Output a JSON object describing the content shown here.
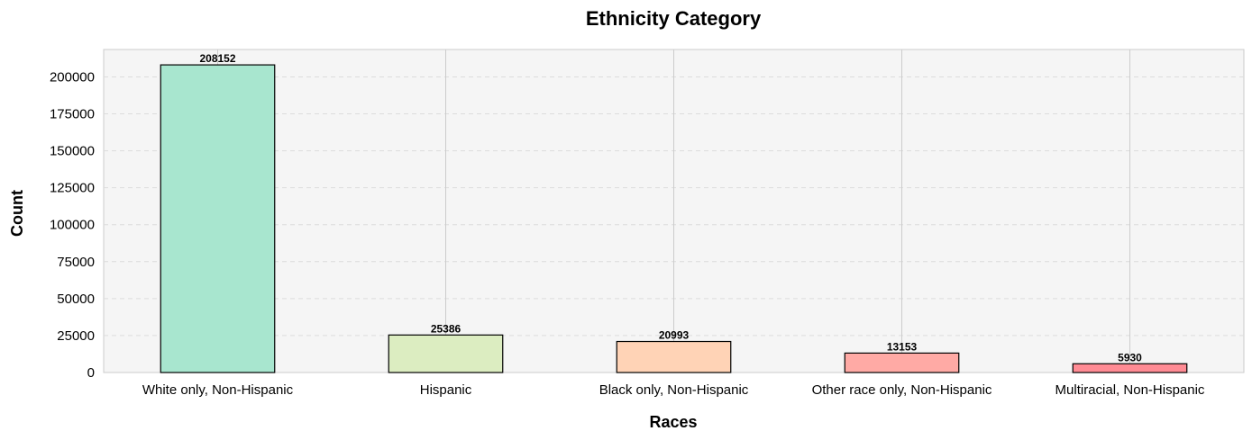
{
  "chart_data": {
    "type": "bar",
    "title": "Ethnicity Category",
    "xlabel": "Races",
    "ylabel": "Count",
    "categories": [
      "White only, Non-Hispanic",
      "Hispanic",
      "Black only, Non-Hispanic",
      "Other race only, Non-Hispanic",
      "Multiracial, Non-Hispanic"
    ],
    "values": [
      208152,
      25386,
      20993,
      13153,
      5930
    ],
    "data_labels": [
      "208152",
      "25386",
      "20993",
      "13153",
      "5930"
    ],
    "colors": [
      "#a8e6cf",
      "#dcedc1",
      "#ffd3b6",
      "#ffaaa5",
      "#ff8b94"
    ],
    "bar_edge_color": "#000000",
    "ylim": [
      0,
      218559
    ],
    "yticks": [
      0,
      25000,
      50000,
      75000,
      100000,
      125000,
      150000,
      175000,
      200000
    ],
    "ytick_labels": [
      "0",
      "25000",
      "50000",
      "75000",
      "100000",
      "125000",
      "150000",
      "175000",
      "200000"
    ],
    "grid": true,
    "background_color": "#f5f5f5"
  }
}
